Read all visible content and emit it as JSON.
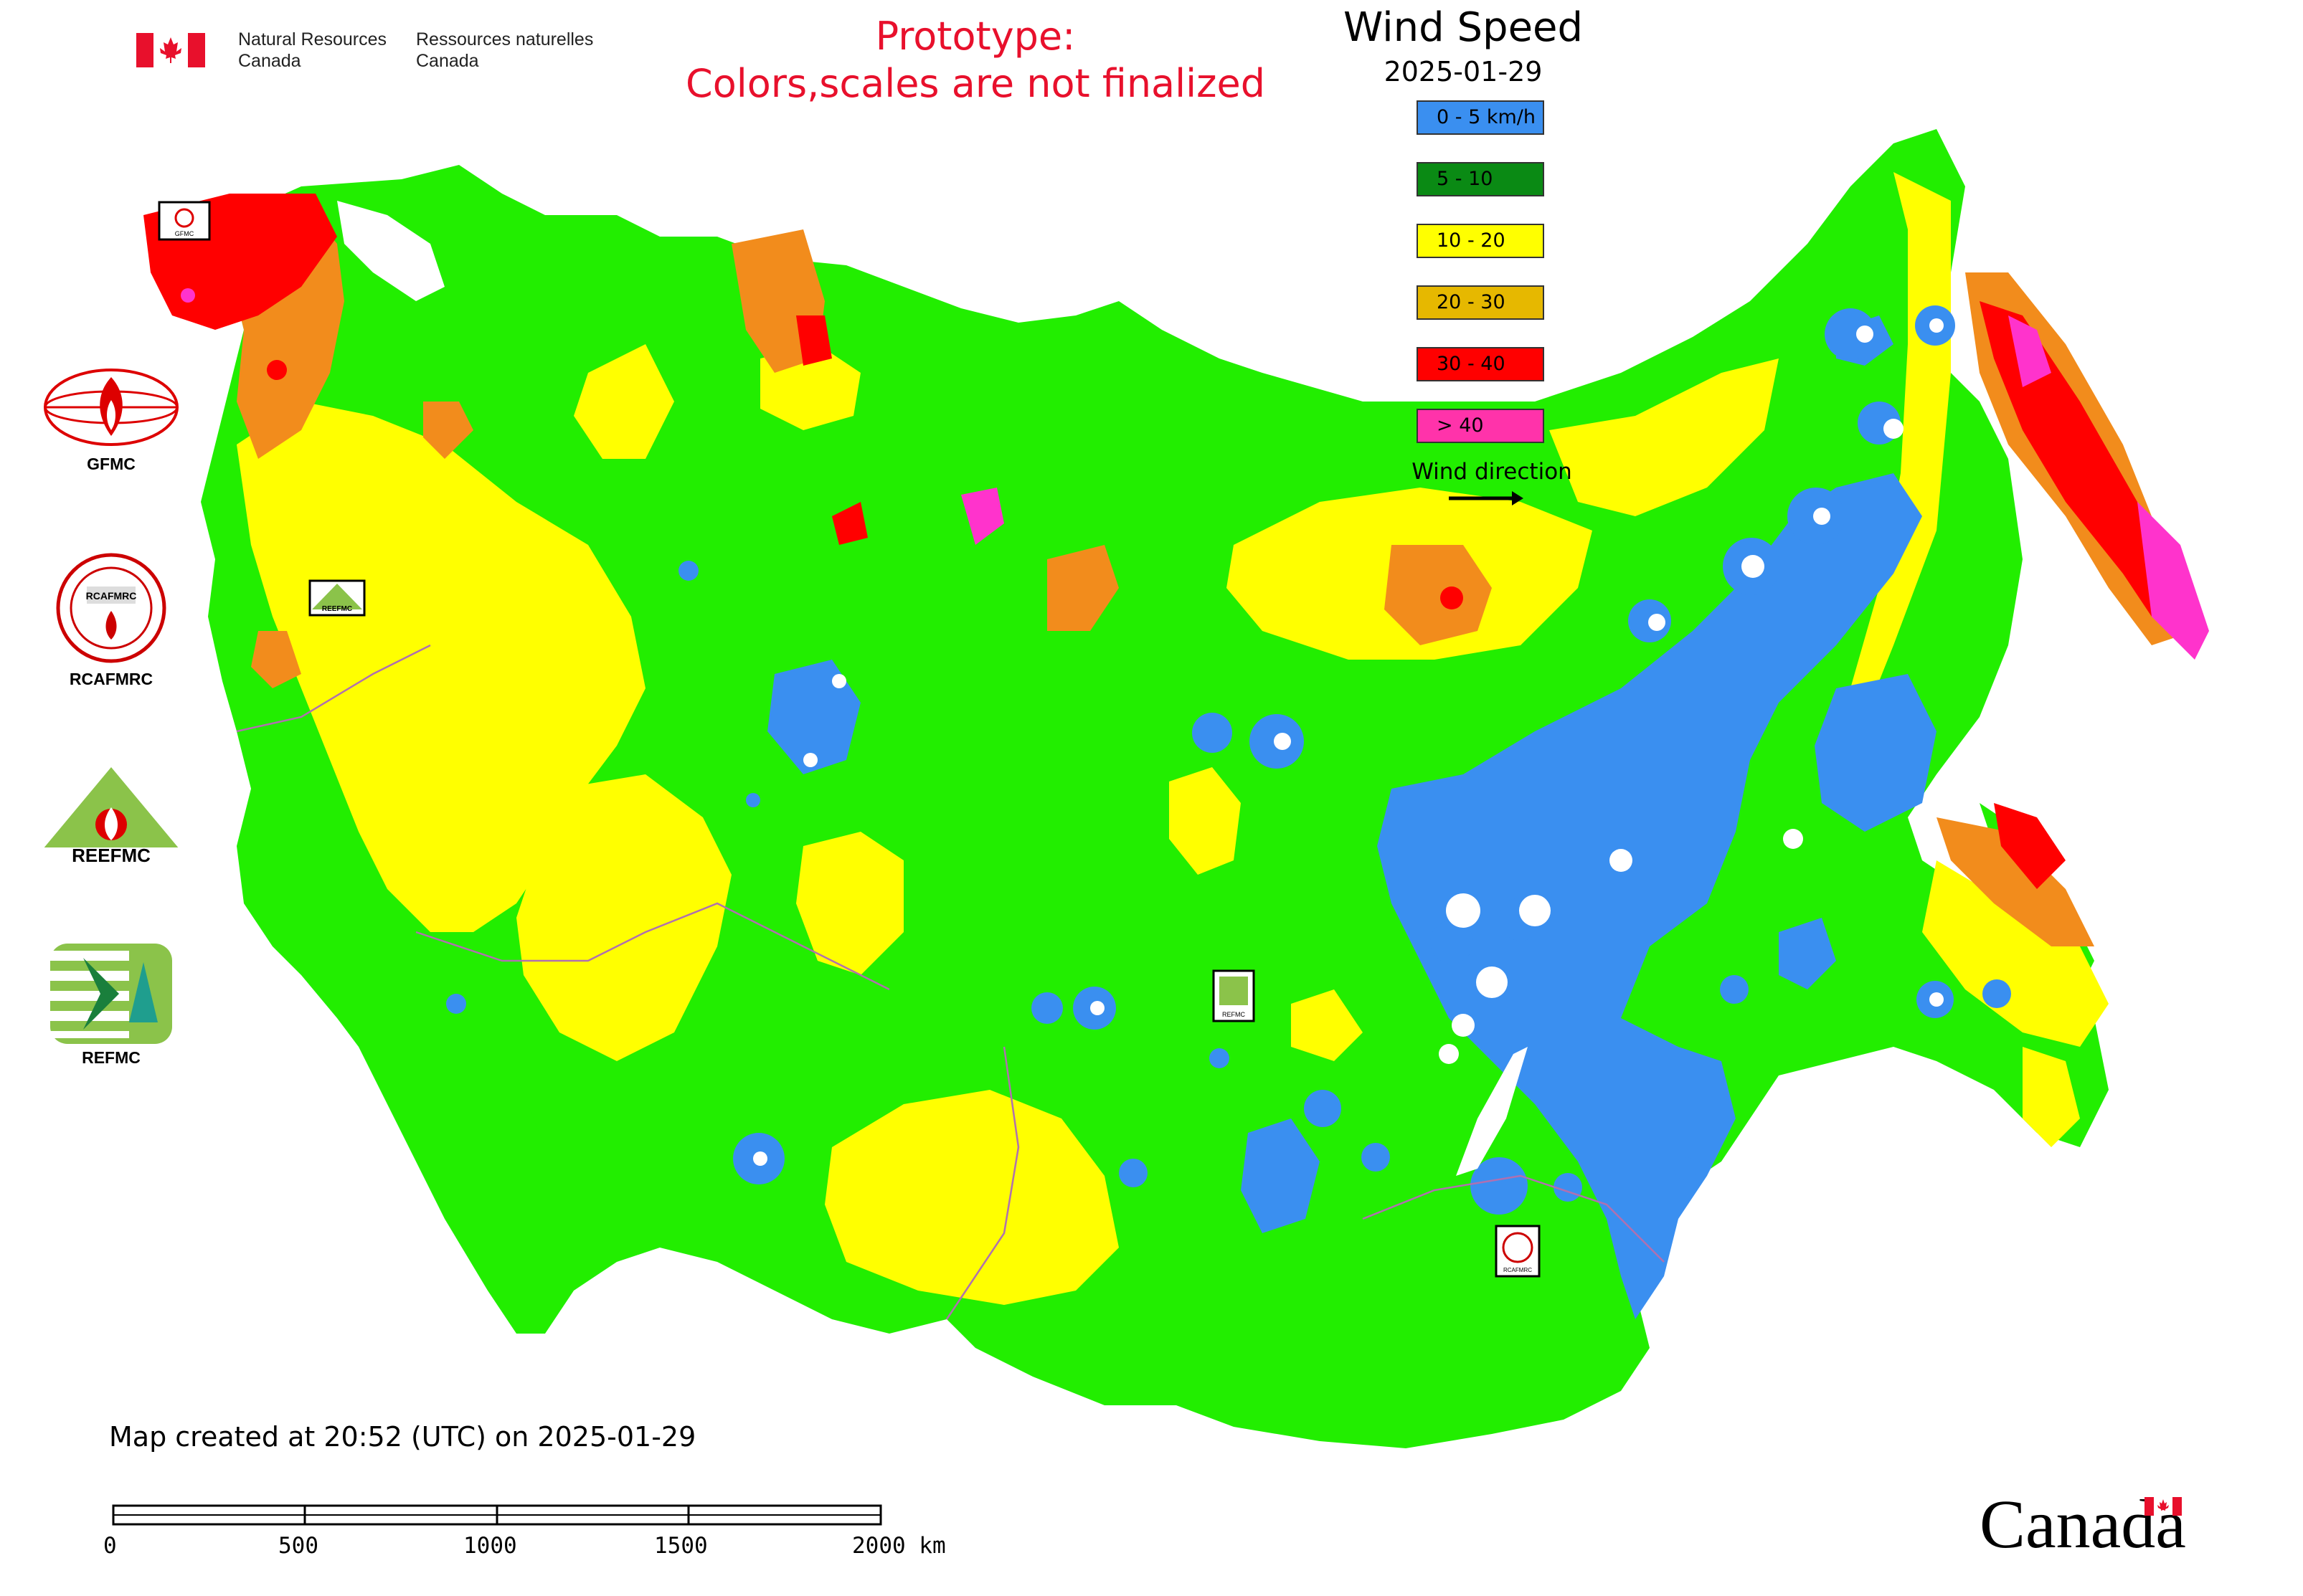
{
  "header": {
    "org_en_line1": "Natural Resources",
    "org_en_line2": "Canada",
    "org_fr_line1": "Ressources naturelles",
    "org_fr_line2": "Canada",
    "warning_line1": "Prototype:",
    "warning_line2": "Colors,scales are not finalized"
  },
  "legend": {
    "title": "Wind Speed",
    "date": "2025-01-29",
    "items": [
      {
        "label": "0 - 5 km/h",
        "color": "#3a8ff0"
      },
      {
        "label": "5 - 10",
        "color": "#0a8a14"
      },
      {
        "label": "10 - 20",
        "color": "#ffff00"
      },
      {
        "label": "20 - 30",
        "color": "#e6b800"
      },
      {
        "label": "30 - 40",
        "color": "#ff0000"
      },
      {
        "label": "> 40",
        "color": "#ff33aa"
      }
    ],
    "wind_direction_label": "Wind direction"
  },
  "logos": [
    {
      "label": "GFMC",
      "icon": "gfmc-logo-icon"
    },
    {
      "label": "RCAFMRC",
      "icon": "rcafmrc-logo-icon"
    },
    {
      "label": "REEFMC",
      "icon": "reefmc-logo-icon"
    },
    {
      "label": "REFMC",
      "icon": "refmc-logo-icon"
    }
  ],
  "map_markers": [
    {
      "label": "GFMC"
    },
    {
      "label": "REEFMC"
    },
    {
      "label": "REFMC"
    },
    {
      "label": "RCAFMRC"
    }
  ],
  "colors": {
    "calm": "#3a8ff0",
    "light": "#22ee00",
    "moderate": "#ffff00",
    "fresh": "#f28c1c",
    "strong": "#ff0000",
    "extreme": "#ff33cc",
    "boundary": "#b070b0"
  },
  "footer": {
    "created": "Map created at 20:52 (UTC) on 2025-01-29",
    "scale_ticks": [
      "0",
      "500",
      "1000",
      "1500",
      "2000 km"
    ],
    "wordmark": "Canada"
  }
}
